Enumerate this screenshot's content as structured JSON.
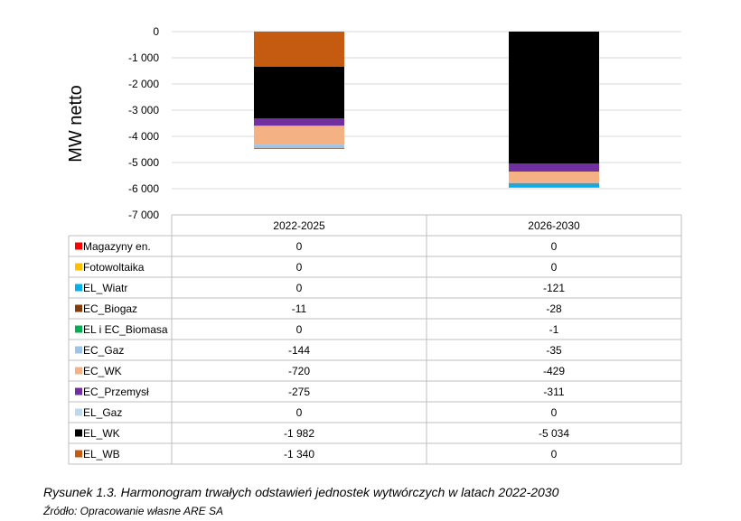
{
  "chart_data": {
    "type": "bar",
    "stacked": true,
    "ylabel": "MW netto",
    "ylim": [
      -7000,
      0
    ],
    "yticks": [
      0,
      -1000,
      -2000,
      -3000,
      -4000,
      -5000,
      -6000,
      -7000
    ],
    "ytick_labels": [
      "0",
      "-1 000",
      "-2 000",
      "-3 000",
      "-4 000",
      "-5 000",
      "-6 000",
      "-7 000"
    ],
    "grid": true,
    "legend_placement": "data-table",
    "categories": [
      "2022-2025",
      "2026-2030"
    ],
    "series": [
      {
        "name": "EL_WB",
        "color": "#C55A11",
        "values": [
          -1340,
          0
        ],
        "labels": [
          "-1 340",
          "0"
        ]
      },
      {
        "name": "EL_WK",
        "color": "#000000",
        "values": [
          -1982,
          -5034
        ],
        "labels": [
          "-1 982",
          "-5 034"
        ]
      },
      {
        "name": "EL_Gaz",
        "color": "#BDD7EE",
        "values": [
          0,
          0
        ],
        "labels": [
          "0",
          "0"
        ]
      },
      {
        "name": "EC_Przemysł",
        "color": "#7030A0",
        "values": [
          -275,
          -311
        ],
        "labels": [
          "-275",
          "-311"
        ]
      },
      {
        "name": "EC_WK",
        "color": "#F4B183",
        "values": [
          -720,
          -429
        ],
        "labels": [
          "-720",
          "-429"
        ]
      },
      {
        "name": "EC_Gaz",
        "color": "#9DC3E6",
        "values": [
          -144,
          -35
        ],
        "labels": [
          "-144",
          "-35"
        ]
      },
      {
        "name": "EL i EC_Biomasa",
        "color": "#00B050",
        "values": [
          0,
          -1
        ],
        "labels": [
          "0",
          "-1"
        ]
      },
      {
        "name": "EC_Biogaz",
        "color": "#843C0C",
        "values": [
          -11,
          -28
        ],
        "labels": [
          "-11",
          "-28"
        ]
      },
      {
        "name": "EL_Wiatr",
        "color": "#00B0F0",
        "values": [
          0,
          -121
        ],
        "labels": [
          "0",
          "-121"
        ]
      },
      {
        "name": "Fotowoltaika",
        "color": "#FFC000",
        "values": [
          0,
          0
        ],
        "labels": [
          "0",
          "0"
        ]
      },
      {
        "name": "Magazyny en.",
        "color": "#FF0000",
        "values": [
          0,
          0
        ],
        "labels": [
          "0",
          "0"
        ]
      }
    ]
  },
  "caption": {
    "title": "Rysunek 1.3. Harmonogram trwałych odstawień jednostek wytwórczych w latach 2022-2030",
    "source": "Źródło: Opracowanie własne ARE SA"
  }
}
